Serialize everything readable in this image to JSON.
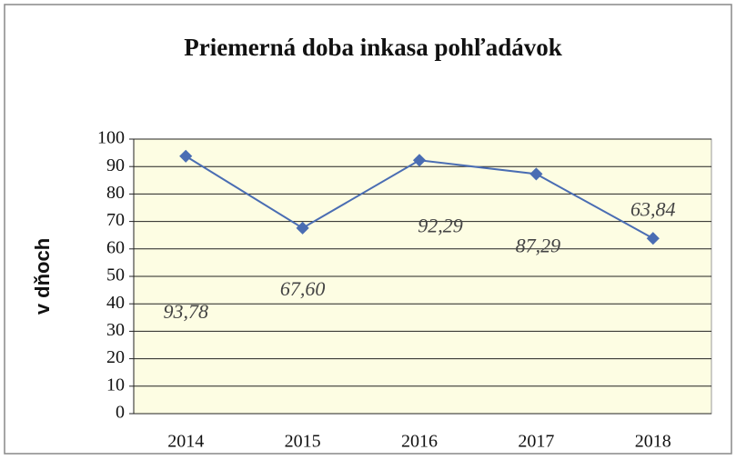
{
  "chart_data": {
    "type": "line",
    "title": "Priemerná doba inkasa pohľadávok",
    "y_label": "v dňoch",
    "categories": [
      "2014",
      "2015",
      "2016",
      "2017",
      "2018"
    ],
    "series": [
      {
        "name": "Priemerná doba inkasa pohľadávok",
        "color": "#4a6db3",
        "values": [
          93.78,
          67.6,
          92.29,
          87.29,
          63.84
        ],
        "value_labels": [
          "93,78",
          "67,60",
          "92,29",
          "87,29",
          "63,84"
        ]
      }
    ],
    "ylim": [
      0,
      100
    ],
    "yticks": [
      0,
      10,
      20,
      30,
      40,
      50,
      60,
      70,
      80,
      90,
      100
    ],
    "grid": true
  }
}
